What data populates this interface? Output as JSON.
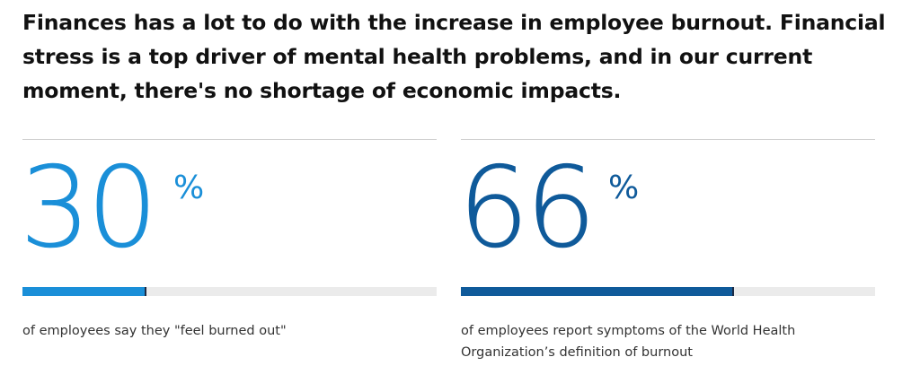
{
  "headline": "Finances has a lot to do with the increase in employee burnout. Financial stress is a top driver of mental health problems, and in our current moment, there's no shortage of economic impacts.",
  "colors": {
    "stat1_accent": "#1a8fd8",
    "stat2_accent": "#0f5a9a",
    "bar_track": "#ebebeb",
    "divider": "#d0d0d0"
  },
  "stats": [
    {
      "value": "30",
      "unit": "%",
      "fill_fraction": 0.3,
      "caption": "of employees say they \"feel burned out\""
    },
    {
      "value": "66",
      "unit": "%",
      "fill_fraction": 0.66,
      "caption": "of employees report symptoms of the World Health Organization’s definition of burnout"
    }
  ]
}
